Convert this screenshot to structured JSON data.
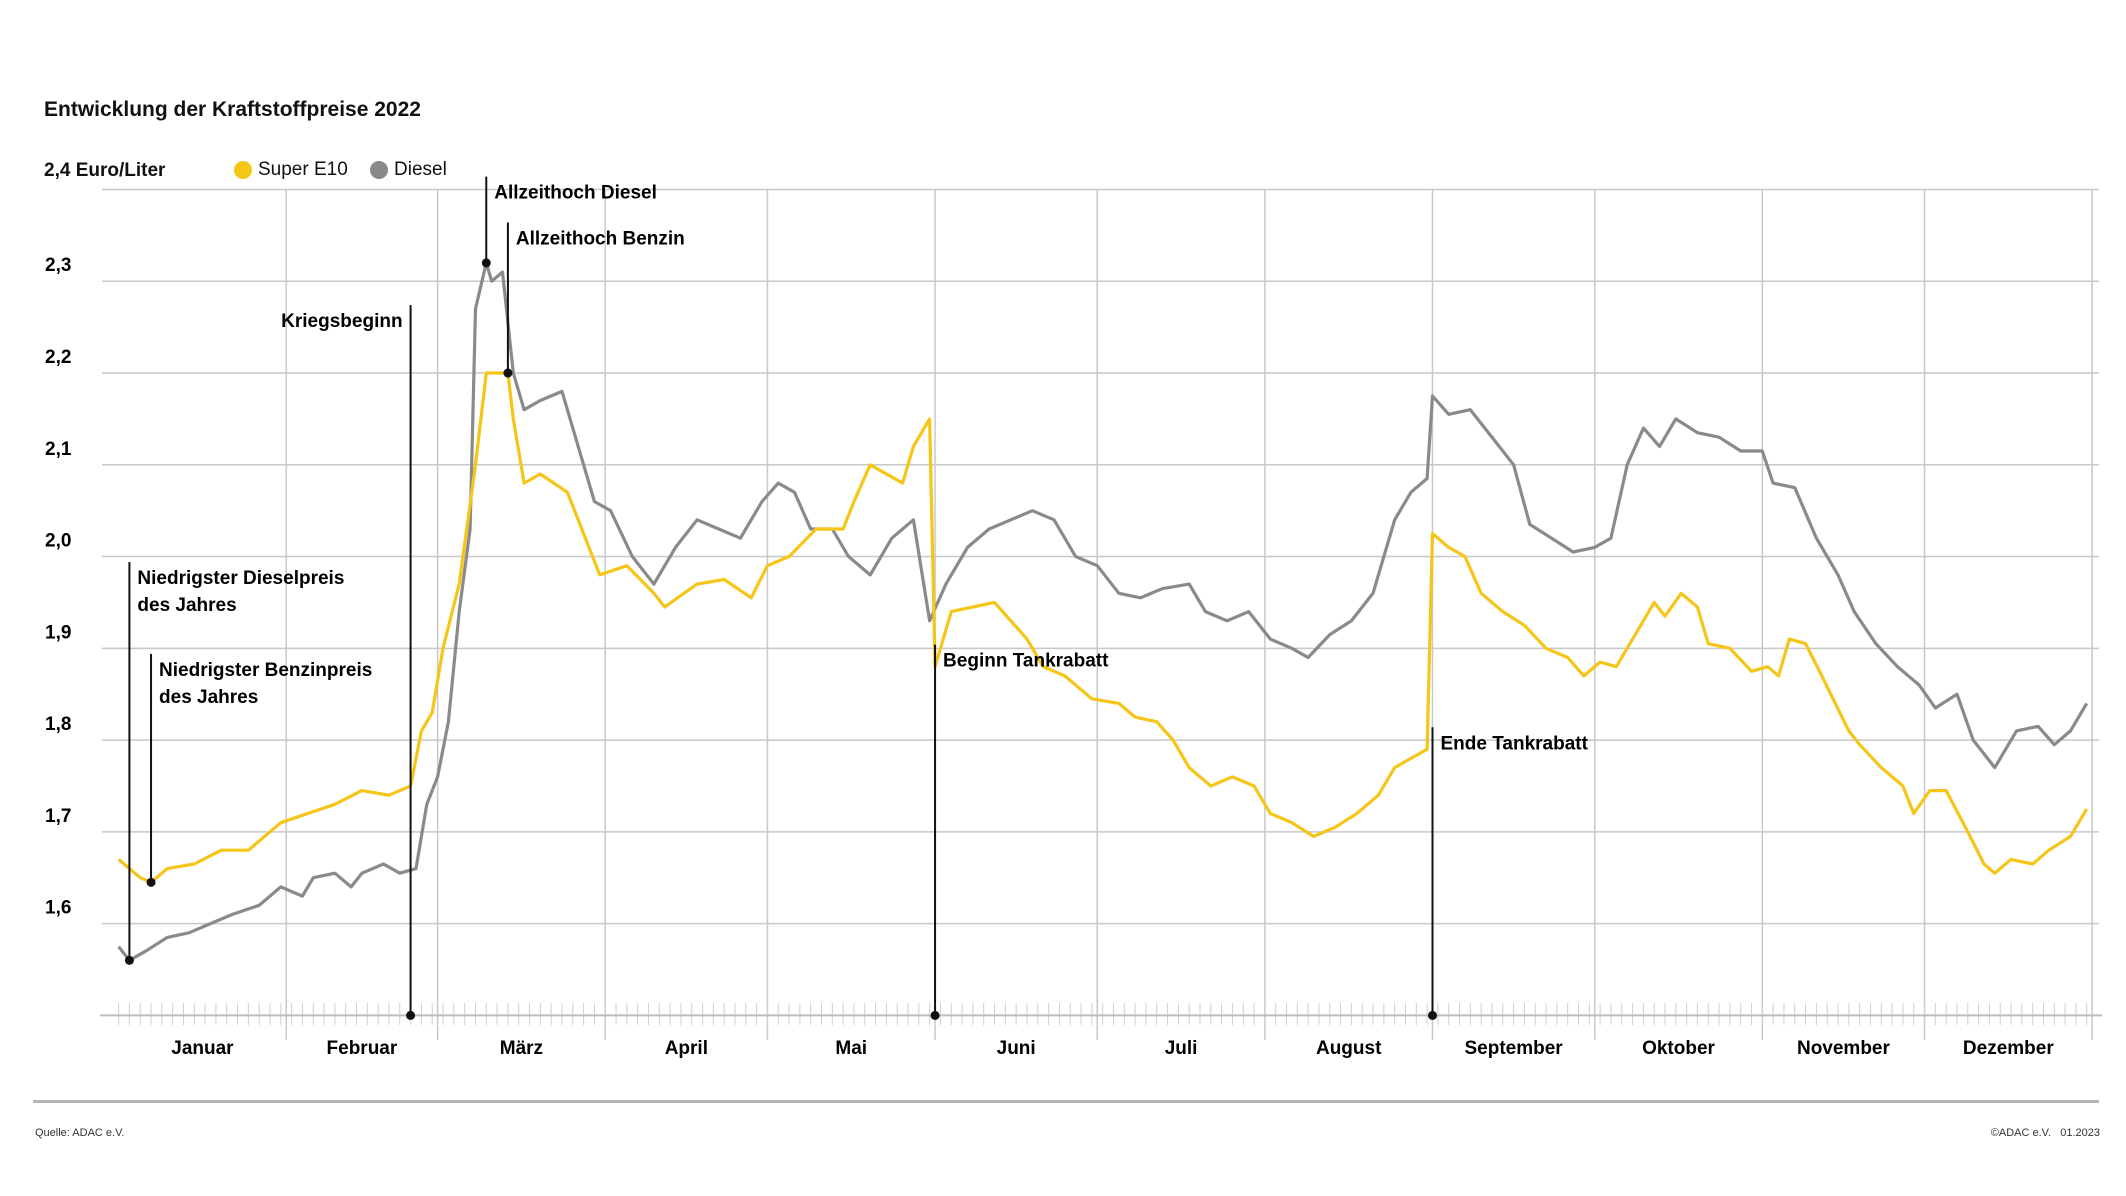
{
  "chart_data": {
    "type": "line",
    "title": "Entwicklung der Kraftstoffpreise 2022",
    "ylabel": "Euro/Liter",
    "ylim": [
      1.5,
      2.4
    ],
    "yticks": [
      {
        "value": 2.4,
        "label": "2,4"
      },
      {
        "value": 2.3,
        "label": "2,3"
      },
      {
        "value": 2.2,
        "label": "2,2"
      },
      {
        "value": 2.1,
        "label": "2,1"
      },
      {
        "value": 2.0,
        "label": "2,0"
      },
      {
        "value": 1.9,
        "label": "1,9"
      },
      {
        "value": 1.8,
        "label": "1,8"
      },
      {
        "value": 1.7,
        "label": "1,7"
      },
      {
        "value": 1.6,
        "label": "1,6"
      }
    ],
    "top_tick_label": "2,4 Euro/Liter",
    "months": [
      "Januar",
      "Februar",
      "März",
      "April",
      "Mai",
      "Juni",
      "Juli",
      "August",
      "September",
      "Oktober",
      "November",
      "Dezember"
    ],
    "year": 2022,
    "grid": true,
    "legend_position": "top-left",
    "series": [
      {
        "name": "Super E10",
        "color": "#f5c518",
        "points": [
          [
            "01-01",
            1.67
          ],
          [
            "01-05",
            1.65
          ],
          [
            "01-07",
            1.645
          ],
          [
            "01-10",
            1.66
          ],
          [
            "01-15",
            1.665
          ],
          [
            "01-20",
            1.68
          ],
          [
            "01-25",
            1.68
          ],
          [
            "01-31",
            1.71
          ],
          [
            "02-05",
            1.72
          ],
          [
            "02-10",
            1.73
          ],
          [
            "02-15",
            1.745
          ],
          [
            "02-20",
            1.74
          ],
          [
            "02-24",
            1.75
          ],
          [
            "02-26",
            1.81
          ],
          [
            "02-28",
            1.83
          ],
          [
            "03-02",
            1.9
          ],
          [
            "03-05",
            1.97
          ],
          [
            "03-08",
            2.1
          ],
          [
            "03-10",
            2.2
          ],
          [
            "03-14",
            2.2
          ],
          [
            "03-15",
            2.15
          ],
          [
            "03-17",
            2.08
          ],
          [
            "03-20",
            2.09
          ],
          [
            "03-25",
            2.07
          ],
          [
            "03-31",
            1.98
          ],
          [
            "04-05",
            1.99
          ],
          [
            "04-10",
            1.96
          ],
          [
            "04-12",
            1.945
          ],
          [
            "04-18",
            1.97
          ],
          [
            "04-23",
            1.975
          ],
          [
            "04-28",
            1.955
          ],
          [
            "05-01",
            1.99
          ],
          [
            "05-05",
            2.0
          ],
          [
            "05-10",
            2.03
          ],
          [
            "05-15",
            2.03
          ],
          [
            "05-17",
            2.06
          ],
          [
            "05-20",
            2.1
          ],
          [
            "05-23",
            2.09
          ],
          [
            "05-26",
            2.08
          ],
          [
            "05-28",
            2.12
          ],
          [
            "05-31",
            2.15
          ],
          [
            "06-01",
            1.88
          ],
          [
            "06-04",
            1.94
          ],
          [
            "06-08",
            1.945
          ],
          [
            "06-12",
            1.95
          ],
          [
            "06-15",
            1.93
          ],
          [
            "06-18",
            1.91
          ],
          [
            "06-21",
            1.88
          ],
          [
            "06-25",
            1.87
          ],
          [
            "06-30",
            1.845
          ],
          [
            "07-05",
            1.84
          ],
          [
            "07-08",
            1.825
          ],
          [
            "07-12",
            1.82
          ],
          [
            "07-15",
            1.8
          ],
          [
            "07-18",
            1.77
          ],
          [
            "07-22",
            1.75
          ],
          [
            "07-26",
            1.76
          ],
          [
            "07-30",
            1.75
          ],
          [
            "08-02",
            1.72
          ],
          [
            "08-06",
            1.71
          ],
          [
            "08-10",
            1.695
          ],
          [
            "08-14",
            1.705
          ],
          [
            "08-18",
            1.72
          ],
          [
            "08-22",
            1.74
          ],
          [
            "08-25",
            1.77
          ],
          [
            "08-28",
            1.78
          ],
          [
            "08-31",
            1.79
          ],
          [
            "09-01",
            2.025
          ],
          [
            "09-04",
            2.01
          ],
          [
            "09-07",
            2.0
          ],
          [
            "09-10",
            1.96
          ],
          [
            "09-14",
            1.94
          ],
          [
            "09-18",
            1.925
          ],
          [
            "09-22",
            1.9
          ],
          [
            "09-26",
            1.89
          ],
          [
            "09-29",
            1.87
          ],
          [
            "10-02",
            1.885
          ],
          [
            "10-05",
            1.88
          ],
          [
            "10-08",
            1.91
          ],
          [
            "10-12",
            1.95
          ],
          [
            "10-14",
            1.935
          ],
          [
            "10-17",
            1.96
          ],
          [
            "10-20",
            1.945
          ],
          [
            "10-22",
            1.905
          ],
          [
            "10-26",
            1.9
          ],
          [
            "10-30",
            1.875
          ],
          [
            "11-02",
            1.88
          ],
          [
            "11-04",
            1.87
          ],
          [
            "11-06",
            1.91
          ],
          [
            "11-09",
            1.905
          ],
          [
            "11-12",
            1.87
          ],
          [
            "11-17",
            1.81
          ],
          [
            "11-19",
            1.795
          ],
          [
            "11-23",
            1.77
          ],
          [
            "11-27",
            1.75
          ],
          [
            "11-29",
            1.72
          ],
          [
            "12-02",
            1.745
          ],
          [
            "12-05",
            1.745
          ],
          [
            "12-09",
            1.7
          ],
          [
            "12-12",
            1.665
          ],
          [
            "12-14",
            1.655
          ],
          [
            "12-17",
            1.67
          ],
          [
            "12-21",
            1.665
          ],
          [
            "12-24",
            1.68
          ],
          [
            "12-28",
            1.695
          ],
          [
            "12-31",
            1.725
          ]
        ]
      },
      {
        "name": "Diesel",
        "color": "#8a8a8a",
        "points": [
          [
            "01-01",
            1.575
          ],
          [
            "01-03",
            1.56
          ],
          [
            "01-06",
            1.57
          ],
          [
            "01-10",
            1.585
          ],
          [
            "01-14",
            1.59
          ],
          [
            "01-18",
            1.6
          ],
          [
            "01-22",
            1.61
          ],
          [
            "01-27",
            1.62
          ],
          [
            "01-31",
            1.64
          ],
          [
            "02-04",
            1.63
          ],
          [
            "02-06",
            1.65
          ],
          [
            "02-10",
            1.655
          ],
          [
            "02-13",
            1.64
          ],
          [
            "02-15",
            1.655
          ],
          [
            "02-19",
            1.665
          ],
          [
            "02-22",
            1.655
          ],
          [
            "02-25",
            1.66
          ],
          [
            "02-27",
            1.73
          ],
          [
            "03-01",
            1.76
          ],
          [
            "03-03",
            1.82
          ],
          [
            "03-05",
            1.94
          ],
          [
            "03-07",
            2.03
          ],
          [
            "03-08",
            2.27
          ],
          [
            "03-10",
            2.32
          ],
          [
            "03-11",
            2.3
          ],
          [
            "03-13",
            2.31
          ],
          [
            "03-15",
            2.2
          ],
          [
            "03-17",
            2.16
          ],
          [
            "03-20",
            2.17
          ],
          [
            "03-24",
            2.18
          ],
          [
            "03-27",
            2.12
          ],
          [
            "03-30",
            2.06
          ],
          [
            "04-02",
            2.05
          ],
          [
            "04-06",
            2.0
          ],
          [
            "04-10",
            1.97
          ],
          [
            "04-14",
            2.01
          ],
          [
            "04-18",
            2.04
          ],
          [
            "04-22",
            2.03
          ],
          [
            "04-26",
            2.02
          ],
          [
            "04-30",
            2.06
          ],
          [
            "05-03",
            2.08
          ],
          [
            "05-06",
            2.07
          ],
          [
            "05-09",
            2.03
          ],
          [
            "05-13",
            2.03
          ],
          [
            "05-16",
            2.0
          ],
          [
            "05-20",
            1.98
          ],
          [
            "05-24",
            2.02
          ],
          [
            "05-28",
            2.04
          ],
          [
            "05-31",
            1.93
          ],
          [
            "06-03",
            1.97
          ],
          [
            "06-07",
            2.01
          ],
          [
            "06-11",
            2.03
          ],
          [
            "06-15",
            2.04
          ],
          [
            "06-19",
            2.05
          ],
          [
            "06-23",
            2.04
          ],
          [
            "06-27",
            2.0
          ],
          [
            "07-01",
            1.99
          ],
          [
            "07-05",
            1.96
          ],
          [
            "07-09",
            1.955
          ],
          [
            "07-13",
            1.965
          ],
          [
            "07-18",
            1.97
          ],
          [
            "07-21",
            1.94
          ],
          [
            "07-25",
            1.93
          ],
          [
            "07-29",
            1.94
          ],
          [
            "08-02",
            1.91
          ],
          [
            "08-06",
            1.9
          ],
          [
            "08-09",
            1.89
          ],
          [
            "08-13",
            1.915
          ],
          [
            "08-17",
            1.93
          ],
          [
            "08-21",
            1.96
          ],
          [
            "08-25",
            2.04
          ],
          [
            "08-28",
            2.07
          ],
          [
            "08-31",
            2.085
          ],
          [
            "09-01",
            2.175
          ],
          [
            "09-04",
            2.155
          ],
          [
            "09-08",
            2.16
          ],
          [
            "09-12",
            2.13
          ],
          [
            "09-16",
            2.1
          ],
          [
            "09-19",
            2.035
          ],
          [
            "09-23",
            2.02
          ],
          [
            "09-27",
            2.005
          ],
          [
            "10-01",
            2.01
          ],
          [
            "10-04",
            2.02
          ],
          [
            "10-07",
            2.1
          ],
          [
            "10-10",
            2.14
          ],
          [
            "10-13",
            2.12
          ],
          [
            "10-16",
            2.15
          ],
          [
            "10-20",
            2.135
          ],
          [
            "10-24",
            2.13
          ],
          [
            "10-28",
            2.115
          ],
          [
            "11-01",
            2.115
          ],
          [
            "11-03",
            2.08
          ],
          [
            "11-07",
            2.075
          ],
          [
            "11-11",
            2.02
          ],
          [
            "11-15",
            1.98
          ],
          [
            "11-18",
            1.94
          ],
          [
            "11-22",
            1.905
          ],
          [
            "11-26",
            1.88
          ],
          [
            "11-30",
            1.86
          ],
          [
            "12-03",
            1.835
          ],
          [
            "12-07",
            1.85
          ],
          [
            "12-10",
            1.8
          ],
          [
            "12-14",
            1.77
          ],
          [
            "12-18",
            1.81
          ],
          [
            "12-22",
            1.815
          ],
          [
            "12-25",
            1.795
          ],
          [
            "12-28",
            1.81
          ],
          [
            "12-31",
            1.84
          ]
        ]
      }
    ],
    "annotations": [
      {
        "label": "Niedrigster Dieselpreis des Jahres",
        "lines": [
          "Niedrigster Dieselpreis",
          "des Jahres"
        ],
        "date": "01-03",
        "value": 1.56,
        "label_value": 1.97
      },
      {
        "label": "Niedrigster Benzinpreis des Jahres",
        "lines": [
          "Niedrigster Benzinpreis",
          "des Jahres"
        ],
        "date": "01-07",
        "value": 1.645,
        "label_value": 1.87
      },
      {
        "label": "Kriegsbeginn",
        "lines": [
          "Kriegsbeginn"
        ],
        "date": "02-24",
        "value": 1.5,
        "label_value": 2.25
      },
      {
        "label": "Allzeithoch Diesel",
        "lines": [
          "Allzeithoch Diesel"
        ],
        "date": "03-10",
        "value": 2.32,
        "label_value": 2.39
      },
      {
        "label": "Allzeithoch Benzin",
        "lines": [
          "Allzeithoch Benzin"
        ],
        "date": "03-14",
        "value": 2.2,
        "label_value": 2.34
      },
      {
        "label": "Beginn Tankrabatt",
        "lines": [
          "Beginn Tankrabatt"
        ],
        "date": "06-01",
        "value": 1.5,
        "label_value": 1.88
      },
      {
        "label": "Ende Tankrabatt",
        "lines": [
          "Ende Tankrabatt"
        ],
        "date": "09-01",
        "value": 1.5,
        "label_value": 1.79
      }
    ]
  },
  "footer": {
    "source": "Quelle: ADAC e.V.",
    "copyright": "©ADAC e.V.   01.2023"
  }
}
